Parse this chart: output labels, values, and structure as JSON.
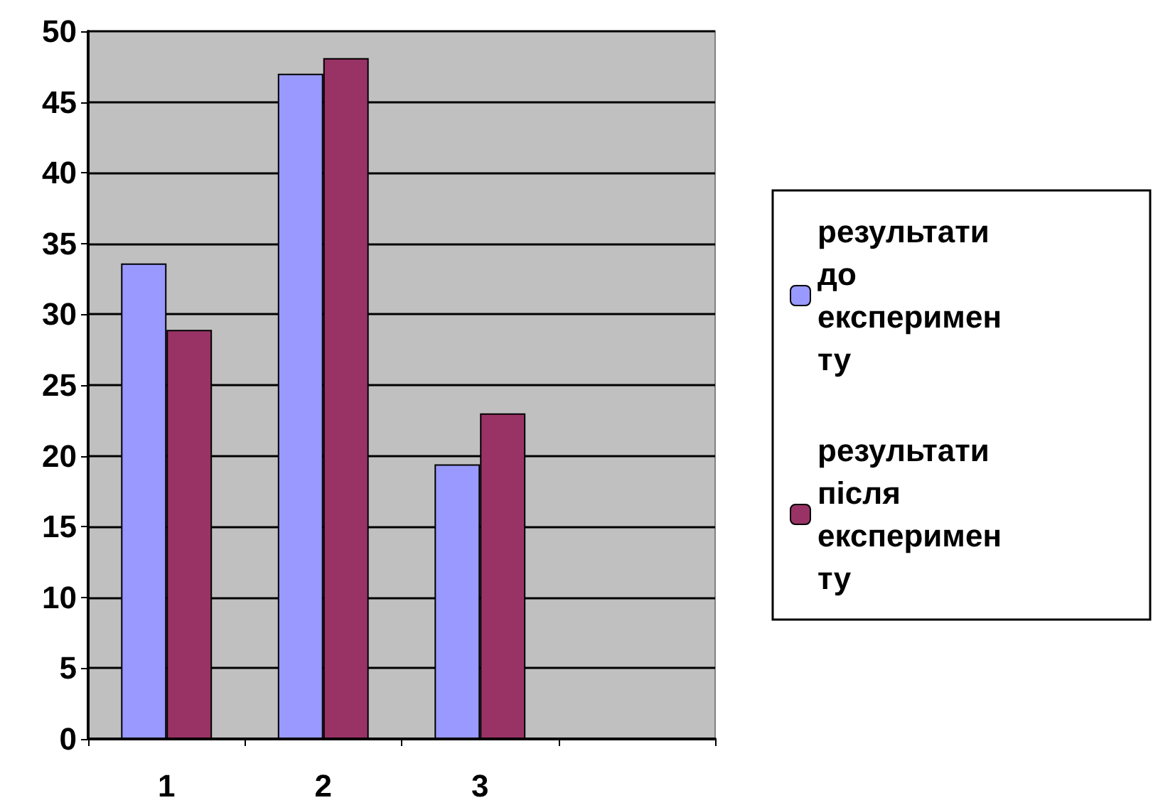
{
  "chart_data": {
    "type": "bar",
    "categories": [
      "1",
      "2",
      "3",
      null
    ],
    "series": [
      {
        "name": "результати до експерименту",
        "color": "#9999ff",
        "values": [
          33.6,
          47.0,
          19.4,
          null
        ]
      },
      {
        "name": "результати після експерименту",
        "color": "#993366",
        "values": [
          28.9,
          48.1,
          23.0,
          null
        ]
      }
    ],
    "ylim": [
      0,
      50
    ],
    "yticks": [
      0,
      5,
      10,
      15,
      20,
      25,
      30,
      35,
      40,
      45,
      50
    ],
    "grid": true,
    "legend": "right"
  }
}
